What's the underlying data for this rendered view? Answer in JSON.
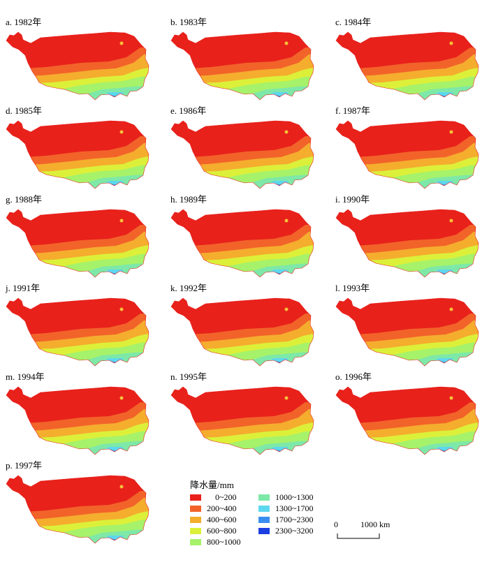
{
  "panels": [
    {
      "label": "a. 1982年"
    },
    {
      "label": "b. 1983年"
    },
    {
      "label": "c. 1984年"
    },
    {
      "label": "d. 1985年"
    },
    {
      "label": "e. 1986年"
    },
    {
      "label": "f. 1987年"
    },
    {
      "label": "g. 1988年"
    },
    {
      "label": "h. 1989年"
    },
    {
      "label": "i. 1990年"
    },
    {
      "label": "j. 1991年"
    },
    {
      "label": "k. 1992年"
    },
    {
      "label": "l. 1993年"
    },
    {
      "label": "m. 1994年"
    },
    {
      "label": "n. 1995年"
    },
    {
      "label": "o. 1996年"
    },
    {
      "label": "p. 1997年"
    }
  ],
  "legend": {
    "title": "降水量/mm",
    "items": [
      {
        "label": "0~200",
        "color": "#e8211b"
      },
      {
        "label": "200~400",
        "color": "#f2632a"
      },
      {
        "label": "400~600",
        "color": "#f5ad2e"
      },
      {
        "label": "600~800",
        "color": "#dcf03a"
      },
      {
        "label": "800~1000",
        "color": "#a6f26a"
      },
      {
        "label": "1000~1300",
        "color": "#7de8a8"
      },
      {
        "label": "1300~1700",
        "color": "#5dd7ee"
      },
      {
        "label": "1700~2300",
        "color": "#3a8df0"
      },
      {
        "label": "2300~3200",
        "color": "#1b3fe0"
      }
    ]
  },
  "scale": {
    "zero": "0",
    "max": "1000 km"
  }
}
